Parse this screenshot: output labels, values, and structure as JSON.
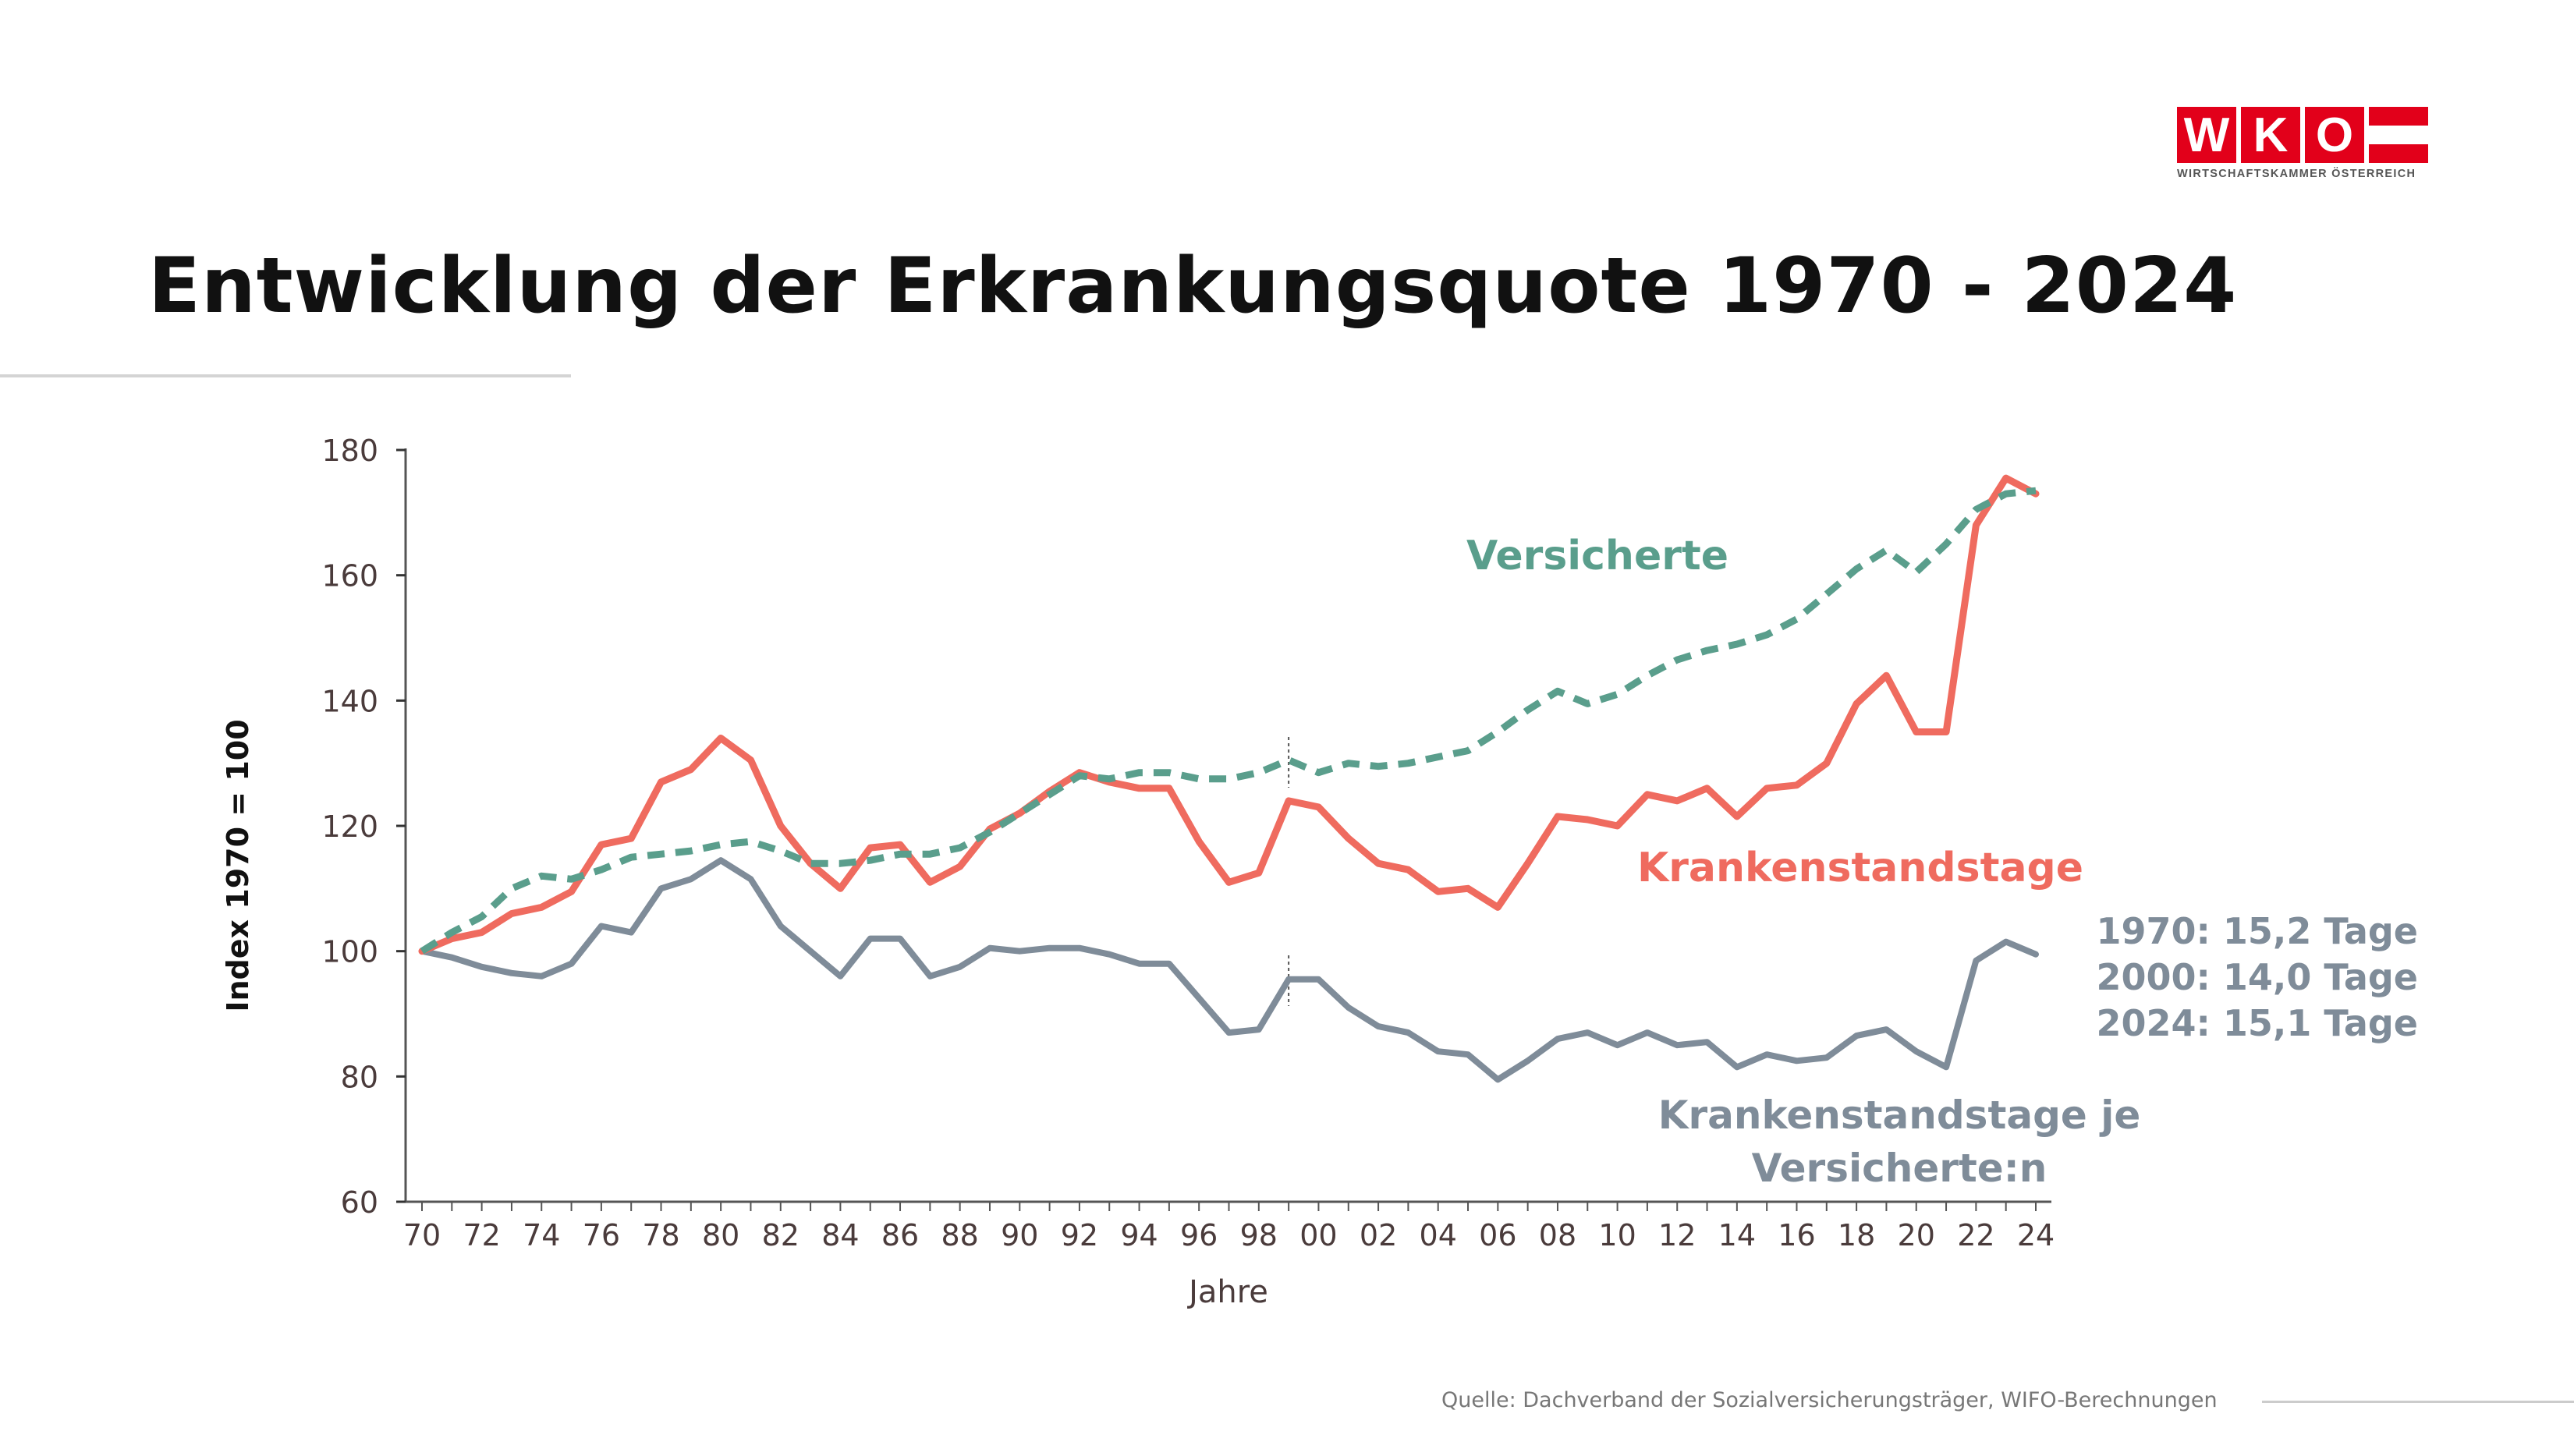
{
  "header": {
    "title": "Entwicklung der Erkrankungsquote 1970 - 2024",
    "logo": {
      "letters": [
        "W",
        "K",
        "O"
      ],
      "subtitle": "WIRTSCHAFTSKAMMER ÖSTERREICH",
      "color": "#e2001a"
    }
  },
  "footer": {
    "source": "Quelle:  Dachverband der Sozialversicherungsträger, WIFO-Berechnungen"
  },
  "chart_data": {
    "type": "line",
    "title": "",
    "xlabel": "Jahre",
    "ylabel": "Index 1970 = 100",
    "ylim": [
      60,
      180
    ],
    "yticks": [
      60,
      80,
      100,
      120,
      140,
      160,
      180
    ],
    "x": [
      1970,
      1971,
      1972,
      1973,
      1974,
      1975,
      1976,
      1977,
      1978,
      1979,
      1980,
      1981,
      1982,
      1983,
      1984,
      1985,
      1986,
      1987,
      1988,
      1989,
      1990,
      1991,
      1992,
      1993,
      1994,
      1995,
      1996,
      1997,
      1998,
      1999,
      2000,
      2001,
      2002,
      2003,
      2004,
      2005,
      2006,
      2007,
      2008,
      2009,
      2010,
      2011,
      2012,
      2013,
      2014,
      2015,
      2016,
      2017,
      2018,
      2019,
      2020,
      2021,
      2022,
      2023,
      2024
    ],
    "xtick_labels": [
      "70",
      "72",
      "74",
      "76",
      "78",
      "80",
      "82",
      "84",
      "86",
      "88",
      "90",
      "92",
      "94",
      "96",
      "98",
      "00",
      "02",
      "04",
      "06",
      "08",
      "10",
      "12",
      "14",
      "16",
      "18",
      "20",
      "22",
      "24"
    ],
    "series": [
      {
        "name": "Versicherte",
        "color": "#5a9e8c",
        "style": "dashed",
        "values": [
          100,
          103,
          105.5,
          110,
          112,
          111.5,
          113,
          115,
          115.5,
          116,
          117,
          117.5,
          116,
          114,
          114,
          114.5,
          115.5,
          115.5,
          116.5,
          119,
          122,
          125,
          128,
          127.5,
          128.5,
          128.5,
          127.5,
          127.5,
          128.5,
          130.5,
          128.5,
          130,
          129.5,
          130,
          131,
          132,
          135,
          138.5,
          141.5,
          139.5,
          141,
          144,
          146.5,
          148,
          149,
          150.5,
          153,
          157,
          161,
          164,
          160.5,
          165,
          170.5,
          173,
          173.5
        ]
      },
      {
        "name": "Krankenstandstage",
        "color": "#ef6b5f",
        "style": "solid",
        "values": [
          100,
          102,
          103,
          106,
          107,
          109.5,
          117,
          118,
          127,
          129,
          134,
          130.5,
          120,
          114,
          110,
          116.5,
          117,
          111,
          113.5,
          119.5,
          122,
          125.5,
          128.5,
          127,
          126,
          126,
          117.5,
          111,
          112.5,
          124,
          123,
          118,
          114,
          113,
          109.5,
          110,
          107,
          114,
          121.5,
          121,
          120,
          125,
          124,
          126,
          121.5,
          126,
          126.5,
          130,
          139.5,
          144,
          135,
          135,
          168,
          175.5,
          173
        ]
      },
      {
        "name": "Krankenstandstage je Versicherte:n",
        "color": "#7f8c99",
        "style": "solid",
        "values": [
          100,
          99,
          97.5,
          96.5,
          96,
          98,
          104,
          103,
          110,
          111.5,
          114.5,
          111.5,
          104,
          100,
          96,
          102,
          102,
          96,
          97.5,
          100.5,
          100,
          100.5,
          100.5,
          99.5,
          98,
          98,
          92.5,
          87,
          87.5,
          95.5,
          95.5,
          91,
          88,
          87,
          84,
          83.5,
          79.5,
          82.5,
          86,
          87,
          85,
          87,
          85,
          85.5,
          81.5,
          83.5,
          82.5,
          83,
          86.5,
          87.5,
          84,
          81.5,
          98.5,
          101.5,
          99.5
        ]
      }
    ],
    "marker_year": 1999,
    "annotations": {
      "versicherte": "Versicherte",
      "krankenstandstage": "Krankenstandstage",
      "je_line1": "Krankenstandstage je",
      "je_line2": "Versicherte:n",
      "stats": [
        "1970: 15,2 Tage",
        "2000: 14,0 Tage",
        "2024: 15,1 Tage"
      ]
    }
  }
}
